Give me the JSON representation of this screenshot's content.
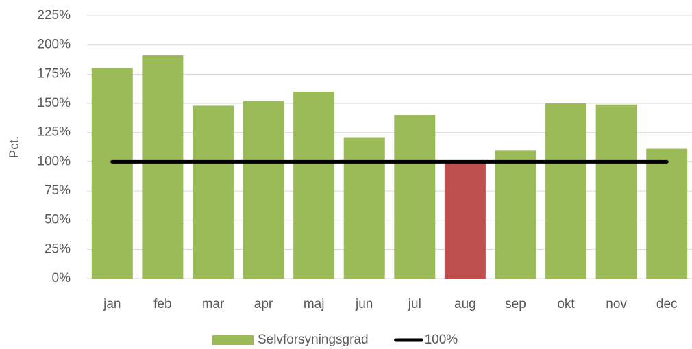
{
  "chart_data": {
    "type": "bar",
    "ylabel": "Pct.",
    "categories": [
      "jan",
      "feb",
      "mar",
      "apr",
      "maj",
      "jun",
      "jul",
      "aug",
      "sep",
      "okt",
      "nov",
      "dec"
    ],
    "series": [
      {
        "name": "Selvforsyningsgrad",
        "type": "bar",
        "color": "#9bbb59",
        "colors": [
          "#9bbb59",
          "#9bbb59",
          "#9bbb59",
          "#9bbb59",
          "#9bbb59",
          "#9bbb59",
          "#9bbb59",
          "#c0504d",
          "#9bbb59",
          "#9bbb59",
          "#9bbb59",
          "#9bbb59"
        ],
        "values": [
          180,
          191,
          148,
          152,
          160,
          121,
          140,
          100,
          110,
          150,
          149,
          111
        ]
      },
      {
        "name": "100%",
        "type": "line",
        "color": "#000000",
        "values": [
          100,
          100,
          100,
          100,
          100,
          100,
          100,
          100,
          100,
          100,
          100,
          100
        ]
      }
    ],
    "ylim": [
      0,
      225
    ],
    "yticks": [
      {
        "value": 0,
        "label": "0%"
      },
      {
        "value": 25,
        "label": "25%"
      },
      {
        "value": 50,
        "label": "50%"
      },
      {
        "value": 75,
        "label": "75%"
      },
      {
        "value": 100,
        "label": "100%"
      },
      {
        "value": 125,
        "label": "125%"
      },
      {
        "value": 150,
        "label": "150%"
      },
      {
        "value": 175,
        "label": "175%"
      },
      {
        "value": 200,
        "label": "200%"
      },
      {
        "value": 225,
        "label": "225%"
      }
    ],
    "grid": true,
    "legend": "bottom"
  }
}
